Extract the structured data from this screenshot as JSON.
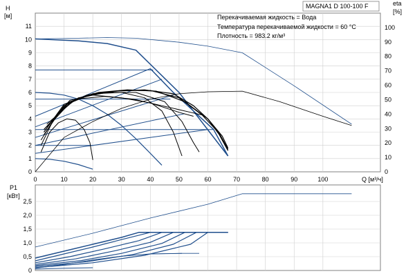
{
  "model_label": "MAGNA1 D 100-100 F",
  "info_lines": [
    "Перекачиваемая жидкость = Вода",
    "Температура перекачиваемой жидкости = 60 °C",
    "Плотность = 983.2 кг/м³"
  ],
  "colors": {
    "blue": "#1f4e8c",
    "black": "#000000",
    "frame": "#808080",
    "grid": "#cfcfcf"
  },
  "chart_data": [
    {
      "type": "line",
      "title": "",
      "xlabel": "Q [м³/ч]",
      "ylabel": "H [м]",
      "y2label": "eta [%]",
      "xlim": [
        0,
        120
      ],
      "ylim": [
        0,
        12
      ],
      "y2lim": [
        0,
        110
      ],
      "xticks": [
        0,
        10,
        20,
        30,
        40,
        50,
        60,
        70,
        80,
        90,
        100
      ],
      "yticks": [
        0,
        1,
        2,
        3,
        4,
        5,
        6,
        7,
        8,
        9,
        10,
        11
      ],
      "y2ticks": [
        0,
        10,
        20,
        30,
        40,
        50,
        60,
        70,
        80,
        90,
        100
      ],
      "grid": true,
      "series": [
        {
          "color": "blue",
          "width": 1.5,
          "points": [
            [
              0,
              10.05
            ],
            [
              15,
              9.9
            ],
            [
              25,
              9.7
            ],
            [
              35,
              9.2
            ],
            [
              50,
              6.0
            ],
            [
              67,
              1.2
            ]
          ]
        },
        {
          "color": "blue",
          "width": 1.2,
          "points": [
            [
              0,
              6.0
            ],
            [
              5,
              5.95
            ],
            [
              10,
              5.8
            ],
            [
              15,
              5.5
            ],
            [
              20,
              5.0
            ],
            [
              25,
              4.35
            ],
            [
              30,
              3.5
            ],
            [
              35,
              2.5
            ],
            [
              40,
              1.4
            ],
            [
              44,
              0.5
            ]
          ]
        },
        {
          "color": "blue",
          "width": 1.2,
          "points": [
            [
              0,
              1.0
            ],
            [
              5,
              0.95
            ],
            [
              10,
              0.8
            ],
            [
              15,
              0.55
            ],
            [
              20,
              0.2
            ]
          ]
        },
        {
          "color": "blue",
          "width": 1.0,
          "points": [
            [
              0,
              4.2
            ],
            [
              40,
              7.8
            ]
          ]
        },
        {
          "color": "blue",
          "width": 1.0,
          "points": [
            [
              0,
              3.4
            ],
            [
              44,
              7.0
            ]
          ]
        },
        {
          "color": "blue",
          "width": 1.0,
          "points": [
            [
              0,
              2.6
            ],
            [
              48,
              5.8
            ]
          ]
        },
        {
          "color": "blue",
          "width": 1.0,
          "points": [
            [
              0,
              2.0
            ],
            [
              52,
              4.4
            ]
          ]
        },
        {
          "color": "blue",
          "width": 1.0,
          "points": [
            [
              0,
              1.4
            ],
            [
              60,
              3.2
            ]
          ]
        },
        {
          "color": "blue",
          "width": 1.0,
          "points": [
            [
              0,
              7.7
            ],
            [
              41,
              7.7
            ]
          ]
        },
        {
          "color": "blue",
          "width": 1.0,
          "points": [
            [
              0,
              5.5
            ],
            [
              47,
              5.5
            ]
          ]
        },
        {
          "color": "blue",
          "width": 1.0,
          "points": [
            [
              0,
              3.2
            ],
            [
              62,
              3.2
            ]
          ]
        },
        {
          "color": "blue",
          "width": 1.0,
          "points": [
            [
              0,
              2.0
            ],
            [
              20,
              2.0
            ]
          ]
        },
        {
          "color": "blue",
          "width": 1.5,
          "points": [
            [
              40,
              7.8
            ],
            [
              48,
              6.0
            ],
            [
              56,
              4.4
            ],
            [
              62,
              3.2
            ],
            [
              67,
              1.2
            ]
          ]
        },
        {
          "color": "blue",
          "width": 0.8,
          "points": [
            [
              0,
              10.05
            ],
            [
              15,
              10.1
            ],
            [
              25,
              10.15
            ],
            [
              35,
              10.1
            ],
            [
              50,
              9.8
            ],
            [
              60,
              9.5
            ],
            [
              72,
              9.0
            ],
            [
              90,
              6.5
            ],
            [
              110,
              3.6
            ]
          ]
        },
        {
          "color": "black",
          "width": 0.8,
          "points": [
            [
              0,
              0.0
            ],
            [
              10,
              2.6
            ],
            [
              20,
              3.8
            ],
            [
              30,
              4.8
            ],
            [
              40,
              5.5
            ],
            [
              50,
              5.9
            ],
            [
              60,
              6.05
            ],
            [
              72,
              6.1
            ],
            [
              85,
              5.3
            ],
            [
              100,
              4.2
            ],
            [
              110,
              3.5
            ]
          ]
        },
        {
          "color": "black",
          "width": 1.0,
          "points": [
            [
              2,
              1.5
            ],
            [
              5,
              3.0
            ],
            [
              8,
              3.7
            ],
            [
              11,
              4.0
            ],
            [
              14,
              3.9
            ],
            [
              17,
              3.2
            ],
            [
              19,
              2.2
            ],
            [
              20,
              0.9
            ]
          ]
        },
        {
          "color": "black",
          "width": 1.0,
          "points": [
            [
              2,
              2.0
            ],
            [
              6,
              3.8
            ],
            [
              12,
              5.2
            ],
            [
              20,
              5.9
            ],
            [
              30,
              6.0
            ],
            [
              38,
              5.6
            ],
            [
              44,
              4.6
            ],
            [
              48,
              3.0
            ],
            [
              51,
              1.2
            ]
          ]
        },
        {
          "color": "black",
          "width": 1.0,
          "points": [
            [
              2,
              2.4
            ],
            [
              8,
              4.5
            ],
            [
              15,
              5.6
            ],
            [
              25,
              6.0
            ],
            [
              35,
              6.0
            ],
            [
              45,
              5.3
            ],
            [
              51,
              3.8
            ],
            [
              55,
              2.2
            ],
            [
              57,
              1.5
            ]
          ]
        },
        {
          "color": "black",
          "width": 1.2,
          "points": [
            [
              3,
              2.8
            ],
            [
              10,
              5.0
            ],
            [
              18,
              5.8
            ],
            [
              28,
              6.1
            ],
            [
              38,
              6.2
            ],
            [
              48,
              5.9
            ],
            [
              55,
              5.0
            ],
            [
              60,
              4.0
            ],
            [
              64,
              2.8
            ],
            [
              67,
              1.6
            ]
          ]
        },
        {
          "color": "black",
          "width": 1.2,
          "points": [
            [
              3,
              3.0
            ],
            [
              10,
              5.1
            ],
            [
              20,
              5.9
            ],
            [
              30,
              6.15
            ],
            [
              40,
              6.15
            ],
            [
              50,
              5.6
            ],
            [
              58,
              4.3
            ],
            [
              64,
              2.9
            ],
            [
              67,
              1.7
            ]
          ]
        },
        {
          "color": "black",
          "width": 1.2,
          "points": [
            [
              3,
              3.2
            ],
            [
              12,
              5.3
            ],
            [
              22,
              6.0
            ],
            [
              32,
              6.2
            ],
            [
              42,
              6.1
            ],
            [
              52,
              5.3
            ],
            [
              60,
              4.0
            ],
            [
              65,
              2.7
            ],
            [
              67,
              1.8
            ]
          ]
        },
        {
          "color": "black",
          "width": 1.0,
          "points": [
            [
              4,
              3.4
            ],
            [
              12,
              5.4
            ],
            [
              20,
              5.8
            ],
            [
              30,
              5.6
            ],
            [
              40,
              5.2
            ],
            [
              50,
              4.5
            ],
            [
              55,
              4.2
            ]
          ]
        },
        {
          "color": "black",
          "width": 1.0,
          "points": [
            [
              4,
              3.6
            ],
            [
              14,
              5.5
            ],
            [
              24,
              5.7
            ],
            [
              34,
              5.5
            ],
            [
              44,
              5.0
            ],
            [
              54,
              4.5
            ],
            [
              58,
              4.3
            ]
          ]
        }
      ]
    },
    {
      "type": "line",
      "title": "",
      "xlabel": "",
      "ylabel": "P1 [кВт]",
      "xlim": [
        0,
        120
      ],
      "ylim": [
        0,
        3.1
      ],
      "yticks": [
        0,
        0.5,
        1.0,
        1.5,
        2.0,
        2.5
      ],
      "ytick_labels": [
        "0",
        "0,5",
        "1,0",
        "1,5",
        "2,0",
        "2,5"
      ],
      "grid": true,
      "series": [
        {
          "color": "blue",
          "width": 0.8,
          "points": [
            [
              0,
              0.85
            ],
            [
              20,
              1.35
            ],
            [
              40,
              1.9
            ],
            [
              60,
              2.4
            ],
            [
              72,
              2.78
            ],
            [
              110,
              2.78
            ]
          ]
        },
        {
          "color": "blue",
          "width": 1.5,
          "points": [
            [
              0,
              0.45
            ],
            [
              10,
              0.7
            ],
            [
              20,
              0.95
            ],
            [
              30,
              1.2
            ],
            [
              36,
              1.38
            ],
            [
              67,
              1.38
            ]
          ]
        },
        {
          "color": "blue",
          "width": 1.2,
          "points": [
            [
              0,
              0.35
            ],
            [
              10,
              0.6
            ],
            [
              20,
              0.85
            ],
            [
              30,
              1.12
            ],
            [
              40,
              1.38
            ],
            [
              67,
              1.38
            ]
          ]
        },
        {
          "color": "blue",
          "width": 1.2,
          "points": [
            [
              0,
              0.28
            ],
            [
              12,
              0.5
            ],
            [
              24,
              0.78
            ],
            [
              36,
              1.08
            ],
            [
              44,
              1.38
            ],
            [
              67,
              1.38
            ]
          ]
        },
        {
          "color": "blue",
          "width": 1.2,
          "points": [
            [
              0,
              0.22
            ],
            [
              14,
              0.42
            ],
            [
              28,
              0.72
            ],
            [
              40,
              1.02
            ],
            [
              48,
              1.38
            ],
            [
              67,
              1.38
            ]
          ]
        },
        {
          "color": "blue",
          "width": 1.2,
          "points": [
            [
              0,
              0.18
            ],
            [
              16,
              0.36
            ],
            [
              30,
              0.62
            ],
            [
              44,
              0.98
            ],
            [
              52,
              1.38
            ],
            [
              67,
              1.38
            ]
          ]
        },
        {
          "color": "blue",
          "width": 1.2,
          "points": [
            [
              0,
              0.14
            ],
            [
              18,
              0.32
            ],
            [
              34,
              0.58
            ],
            [
              48,
              0.95
            ],
            [
              56,
              1.38
            ],
            [
              67,
              1.38
            ]
          ]
        },
        {
          "color": "blue",
          "width": 1.2,
          "points": [
            [
              0,
              0.1
            ],
            [
              20,
              0.28
            ],
            [
              38,
              0.55
            ],
            [
              54,
              0.95
            ],
            [
              60,
              1.38
            ],
            [
              67,
              1.38
            ]
          ]
        },
        {
          "color": "blue",
          "width": 1.0,
          "points": [
            [
              0,
              0.08
            ],
            [
              10,
              0.22
            ],
            [
              20,
              0.38
            ],
            [
              30,
              0.52
            ],
            [
              40,
              0.6
            ],
            [
              51,
              0.62
            ]
          ]
        },
        {
          "color": "blue",
          "width": 1.0,
          "points": [
            [
              0,
              0.05
            ],
            [
              10,
              0.08
            ],
            [
              20,
              0.1
            ]
          ]
        },
        {
          "color": "blue",
          "width": 0.8,
          "points": [
            [
              40,
              0.6
            ],
            [
              51,
              0.62
            ],
            [
              57,
              0.62
            ]
          ]
        }
      ]
    }
  ]
}
